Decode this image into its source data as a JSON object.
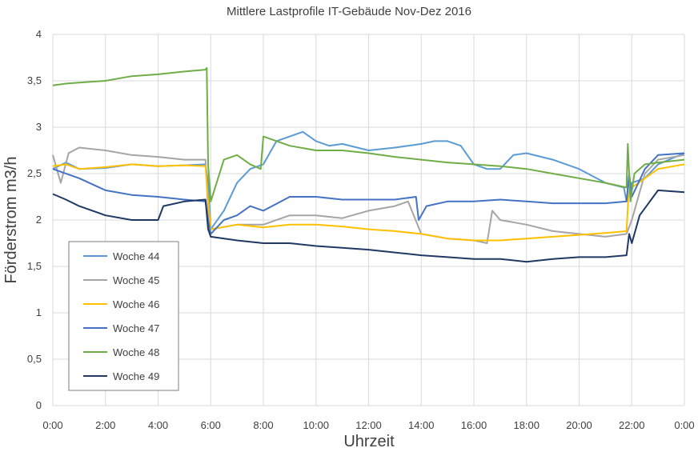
{
  "chart_data": {
    "type": "line",
    "title": "Mittlere Lastprofile IT-Gebäude Nov-Dez 2016",
    "xlabel": "Uhrzeit",
    "ylabel": "Förderstrom m3/h",
    "ylim": [
      0,
      4
    ],
    "xlim": [
      0,
      24
    ],
    "y_ticks": [
      "0",
      "0,5",
      "1",
      "1,5",
      "2",
      "2,5",
      "3",
      "3,5",
      "4"
    ],
    "x_ticks": [
      "0:00",
      "2:00",
      "4:00",
      "6:00",
      "8:00",
      "10:00",
      "12:00",
      "14:00",
      "16:00",
      "18:00",
      "20:00",
      "22:00",
      "0:00"
    ],
    "grid": true,
    "legend_position": "bottom-left",
    "series": [
      {
        "name": "Woche 44",
        "color": "#5b9bd5",
        "x": [
          0,
          0.5,
          1,
          2,
          3,
          4,
          5,
          5.8,
          5.9,
          6.0,
          6.5,
          7.0,
          7.5,
          8.0,
          8.5,
          9.0,
          9.5,
          10.0,
          10.5,
          11.0,
          12.0,
          13.0,
          14.0,
          14.5,
          15.0,
          15.5,
          16.0,
          16.5,
          17.0,
          17.5,
          18.0,
          19.0,
          20.0,
          21.0,
          21.7,
          21.8,
          22.0,
          22.5,
          23.0,
          24.0
        ],
        "values": [
          2.55,
          2.62,
          2.55,
          2.56,
          2.6,
          2.58,
          2.59,
          2.6,
          2.4,
          1.9,
          2.1,
          2.4,
          2.55,
          2.6,
          2.85,
          2.9,
          2.95,
          2.85,
          2.8,
          2.82,
          2.75,
          2.78,
          2.82,
          2.85,
          2.85,
          2.8,
          2.6,
          2.55,
          2.55,
          2.7,
          2.72,
          2.65,
          2.55,
          2.4,
          2.35,
          2.2,
          2.4,
          2.45,
          2.6,
          2.72
        ]
      },
      {
        "name": "Woche 45",
        "color": "#a5a5a5",
        "x": [
          0,
          0.3,
          0.6,
          1,
          2,
          3,
          4,
          5,
          5.8,
          5.9,
          6.0,
          7.0,
          8.0,
          9.0,
          10.0,
          11.0,
          12.0,
          13.0,
          13.5,
          14.0,
          15.0,
          16.0,
          16.5,
          16.7,
          17.0,
          18.0,
          19.0,
          20.0,
          21.0,
          21.8,
          22.0,
          22.5,
          23.0,
          24.0
        ],
        "values": [
          2.7,
          2.4,
          2.72,
          2.78,
          2.75,
          2.7,
          2.68,
          2.65,
          2.65,
          2.1,
          1.9,
          1.95,
          1.95,
          2.05,
          2.05,
          2.02,
          2.1,
          2.15,
          2.2,
          1.85,
          1.8,
          1.78,
          1.75,
          2.1,
          2.0,
          1.95,
          1.88,
          1.85,
          1.82,
          1.85,
          2.0,
          2.5,
          2.65,
          2.7
        ]
      },
      {
        "name": "Woche 46",
        "color": "#ffc000",
        "x": [
          0,
          0.5,
          1,
          2,
          3,
          4,
          5,
          5.8,
          5.9,
          6.0,
          7.0,
          8.0,
          9.0,
          10.0,
          11.0,
          12.0,
          13.0,
          14.0,
          15.0,
          16.0,
          17.0,
          18.0,
          19.0,
          20.0,
          21.0,
          21.8,
          21.9,
          22.0,
          22.5,
          23.0,
          24.0
        ],
        "values": [
          2.58,
          2.6,
          2.55,
          2.57,
          2.6,
          2.58,
          2.59,
          2.58,
          2.2,
          1.9,
          1.95,
          1.92,
          1.95,
          1.95,
          1.93,
          1.9,
          1.88,
          1.85,
          1.8,
          1.78,
          1.78,
          1.8,
          1.82,
          1.84,
          1.86,
          1.88,
          2.4,
          2.35,
          2.45,
          2.55,
          2.6
        ]
      },
      {
        "name": "Woche 47",
        "color": "#4472c4",
        "x": [
          0,
          1,
          2,
          3,
          4,
          5,
          5.8,
          5.9,
          6.0,
          6.5,
          7.0,
          7.5,
          8.0,
          9.0,
          10.0,
          11.0,
          12.0,
          13.0,
          13.8,
          13.9,
          14.2,
          15.0,
          16.0,
          17.0,
          18.0,
          19.0,
          20.0,
          21.0,
          21.8,
          21.9,
          22.0,
          22.5,
          23.0,
          24.0
        ],
        "values": [
          2.55,
          2.45,
          2.32,
          2.27,
          2.25,
          2.22,
          2.2,
          2.0,
          1.85,
          2.0,
          2.05,
          2.15,
          2.1,
          2.25,
          2.25,
          2.22,
          2.22,
          2.22,
          2.25,
          2.0,
          2.15,
          2.2,
          2.2,
          2.22,
          2.2,
          2.18,
          2.18,
          2.18,
          2.2,
          2.5,
          2.25,
          2.55,
          2.7,
          2.72
        ]
      },
      {
        "name": "Woche 48",
        "color": "#70ad47",
        "x": [
          0,
          0.5,
          1,
          2,
          3,
          4,
          5,
          5.8,
          5.85,
          5.9,
          6.0,
          6.5,
          7.0,
          7.5,
          7.9,
          8.0,
          9.0,
          10.0,
          11.0,
          12.0,
          13.0,
          14.0,
          15.0,
          16.0,
          17.0,
          18.0,
          19.0,
          20.0,
          21.0,
          21.8,
          21.85,
          21.95,
          22.1,
          22.5,
          23.0,
          24.0
        ],
        "values": [
          3.45,
          3.47,
          3.48,
          3.5,
          3.55,
          3.57,
          3.6,
          3.62,
          3.64,
          2.6,
          2.2,
          2.65,
          2.7,
          2.6,
          2.55,
          2.9,
          2.8,
          2.75,
          2.75,
          2.72,
          2.68,
          2.65,
          2.62,
          2.6,
          2.58,
          2.55,
          2.5,
          2.45,
          2.4,
          2.35,
          2.82,
          2.2,
          2.5,
          2.6,
          2.62,
          2.65
        ]
      },
      {
        "name": "Woche 49",
        "color": "#1f3864",
        "x": [
          0,
          0.5,
          1,
          2,
          3,
          4,
          4.2,
          5,
          5.8,
          5.9,
          6.0,
          7.0,
          8.0,
          9.0,
          10.0,
          11.0,
          12.0,
          13.0,
          14.0,
          15.0,
          16.0,
          17.0,
          18.0,
          19.0,
          20.0,
          21.0,
          21.8,
          21.9,
          22.0,
          22.3,
          23.0,
          24.0
        ],
        "values": [
          2.28,
          2.22,
          2.15,
          2.05,
          2.0,
          2.0,
          2.15,
          2.2,
          2.22,
          1.9,
          1.82,
          1.78,
          1.75,
          1.75,
          1.72,
          1.7,
          1.68,
          1.65,
          1.62,
          1.6,
          1.58,
          1.58,
          1.55,
          1.58,
          1.6,
          1.6,
          1.62,
          1.85,
          1.75,
          2.05,
          2.32,
          2.3
        ]
      }
    ]
  }
}
